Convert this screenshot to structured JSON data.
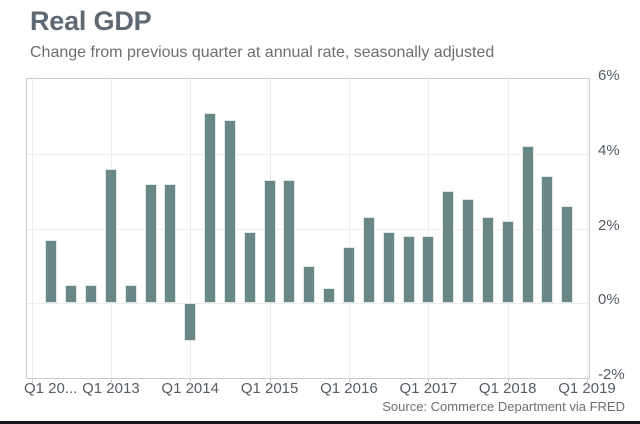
{
  "header": {
    "title": "Real GDP",
    "subtitle": "Change from previous quarter at annual rate, seasonally adjusted"
  },
  "footer": {
    "source": "Source: Commerce Department via FRED"
  },
  "colors": {
    "bar_fill": "#6a8788",
    "bar_border": "#dfe7e7",
    "gridline": "#ececec",
    "plot_border": "#cccccc",
    "title_text": "#5e6973",
    "subtitle_text": "#6e6e6e",
    "axis_label_text": "#565d64",
    "source_text": "#6e6e6e",
    "bottom_rule": "#17191e"
  },
  "chart_data": {
    "type": "bar",
    "title": "Real GDP",
    "subtitle": "Change from previous quarter at annual rate, seasonally adjusted",
    "unit": "percent, annualized quarterly change",
    "categories": [
      "Q2 2012",
      "Q3 2012",
      "Q4 2012",
      "Q1 2013",
      "Q2 2013",
      "Q3 2013",
      "Q4 2013",
      "Q1 2014",
      "Q2 2014",
      "Q3 2014",
      "Q4 2014",
      "Q1 2015",
      "Q2 2015",
      "Q3 2015",
      "Q4 2015",
      "Q1 2016",
      "Q2 2016",
      "Q3 2016",
      "Q4 2016",
      "Q1 2017",
      "Q2 2017",
      "Q3 2017",
      "Q4 2017",
      "Q1 2018",
      "Q2 2018",
      "Q3 2018",
      "Q4 2018"
    ],
    "values": [
      1.7,
      0.5,
      0.5,
      3.6,
      0.5,
      3.2,
      3.2,
      -1.0,
      5.1,
      4.9,
      1.9,
      3.3,
      3.3,
      1.0,
      0.4,
      1.5,
      2.3,
      1.9,
      1.8,
      1.8,
      3.0,
      2.8,
      2.3,
      2.2,
      4.2,
      3.4,
      2.6
    ],
    "ylim": [
      -2,
      6
    ],
    "y_tick_values": [
      6,
      4,
      2,
      0,
      -2
    ],
    "y_tick_labels": [
      "6%",
      "4%",
      "2%",
      "0%",
      "-2%"
    ],
    "x_tick_labels": [
      "Q1 20...",
      "Q1 2013",
      "Q1 2014",
      "Q1 2015",
      "Q1 2016",
      "Q1 2017",
      "Q1 2018",
      "Q1 2019"
    ],
    "grid": true,
    "legend": "none",
    "y_axis_side": "right",
    "source": "Source: Commerce Department via FRED"
  }
}
